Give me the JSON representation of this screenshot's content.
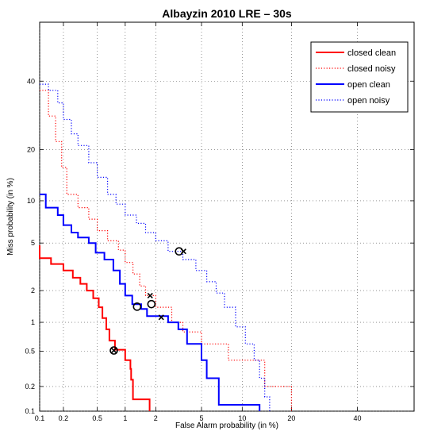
{
  "chart_data": {
    "type": "line",
    "title": "Albayzin 2010 LRE – 30s",
    "xlabel": "False Alarm probability (in %)",
    "ylabel": "Miss probability (in %)",
    "x_scale": "probit",
    "y_scale": "probit",
    "xlim": [
      0.1,
      60
    ],
    "ylim": [
      0.1,
      60
    ],
    "x_ticks": [
      "0.1",
      "0.2",
      "0.5",
      "1",
      "2",
      "5",
      "10",
      "20",
      "40"
    ],
    "y_ticks": [
      "0.1",
      "0.2",
      "0.5",
      "1",
      "2",
      "5",
      "10",
      "20",
      "40"
    ],
    "x_tick_values": [
      0.1,
      0.2,
      0.5,
      1,
      2,
      5,
      10,
      20,
      40
    ],
    "y_tick_values": [
      0.1,
      0.2,
      0.5,
      1,
      2,
      5,
      10,
      20,
      40
    ],
    "grid": true,
    "legend_position": "top-right",
    "series": [
      {
        "name": "closed clean",
        "color": "#ff0000",
        "style": "solid",
        "points": [
          [
            0.1,
            4.8
          ],
          [
            0.1,
            3.8
          ],
          [
            0.14,
            3.8
          ],
          [
            0.14,
            3.4
          ],
          [
            0.2,
            3.4
          ],
          [
            0.2,
            3.0
          ],
          [
            0.26,
            3.0
          ],
          [
            0.26,
            2.6
          ],
          [
            0.32,
            2.6
          ],
          [
            0.32,
            2.3
          ],
          [
            0.38,
            2.3
          ],
          [
            0.38,
            2.0
          ],
          [
            0.45,
            2.0
          ],
          [
            0.45,
            1.7
          ],
          [
            0.52,
            1.7
          ],
          [
            0.52,
            1.4
          ],
          [
            0.57,
            1.4
          ],
          [
            0.57,
            1.1
          ],
          [
            0.63,
            1.1
          ],
          [
            0.63,
            0.85
          ],
          [
            0.68,
            0.85
          ],
          [
            0.68,
            0.65
          ],
          [
            0.78,
            0.65
          ],
          [
            0.78,
            0.52
          ],
          [
            1.0,
            0.52
          ],
          [
            1.0,
            0.4
          ],
          [
            1.13,
            0.4
          ],
          [
            1.13,
            0.32
          ],
          [
            1.15,
            0.32
          ],
          [
            1.15,
            0.24
          ],
          [
            1.2,
            0.24
          ],
          [
            1.2,
            0.14
          ],
          [
            1.75,
            0.14
          ],
          [
            1.75,
            0.1
          ]
        ],
        "dcf_point": [
          0.76,
          0.51
        ],
        "eer_point": [
          0.76,
          0.51
        ]
      },
      {
        "name": "closed noisy",
        "color": "#ff0000",
        "style": "dotted",
        "points": [
          [
            0.1,
            37
          ],
          [
            0.13,
            37
          ],
          [
            0.13,
            29
          ],
          [
            0.16,
            29
          ],
          [
            0.16,
            22
          ],
          [
            0.19,
            22
          ],
          [
            0.19,
            16
          ],
          [
            0.22,
            16
          ],
          [
            0.22,
            11
          ],
          [
            0.3,
            11
          ],
          [
            0.3,
            9
          ],
          [
            0.4,
            9
          ],
          [
            0.4,
            7.5
          ],
          [
            0.5,
            7.5
          ],
          [
            0.5,
            6.2
          ],
          [
            0.65,
            6.2
          ],
          [
            0.65,
            5.2
          ],
          [
            0.85,
            5.2
          ],
          [
            0.85,
            4.4
          ],
          [
            1.0,
            4.4
          ],
          [
            1.0,
            3.5
          ],
          [
            1.2,
            3.5
          ],
          [
            1.2,
            2.8
          ],
          [
            1.4,
            2.8
          ],
          [
            1.4,
            2.2
          ],
          [
            1.6,
            2.2
          ],
          [
            1.6,
            1.8
          ],
          [
            2.0,
            1.8
          ],
          [
            2.0,
            1.4
          ],
          [
            2.8,
            1.4
          ],
          [
            2.8,
            1.0
          ],
          [
            3.5,
            1.0
          ],
          [
            3.5,
            0.8
          ],
          [
            5.0,
            0.8
          ],
          [
            5.0,
            0.6
          ],
          [
            8.0,
            0.6
          ],
          [
            8.0,
            0.4
          ],
          [
            14,
            0.4
          ],
          [
            14,
            0.2
          ],
          [
            20,
            0.2
          ],
          [
            20,
            0.1
          ]
        ],
        "dcf_point": [
          1.82,
          1.5
        ],
        "eer_point": [
          1.77,
          1.8
        ]
      },
      {
        "name": "open clean",
        "color": "#0000ff",
        "style": "solid",
        "points": [
          [
            0.1,
            11
          ],
          [
            0.12,
            11
          ],
          [
            0.12,
            9
          ],
          [
            0.17,
            9
          ],
          [
            0.17,
            8
          ],
          [
            0.2,
            8
          ],
          [
            0.2,
            6.8
          ],
          [
            0.25,
            6.8
          ],
          [
            0.25,
            6.0
          ],
          [
            0.3,
            6.0
          ],
          [
            0.3,
            5.5
          ],
          [
            0.4,
            5.5
          ],
          [
            0.4,
            5.0
          ],
          [
            0.48,
            5.0
          ],
          [
            0.48,
            4.2
          ],
          [
            0.6,
            4.2
          ],
          [
            0.6,
            3.7
          ],
          [
            0.75,
            3.7
          ],
          [
            0.75,
            3.0
          ],
          [
            0.88,
            3.0
          ],
          [
            0.88,
            2.3
          ],
          [
            1.0,
            2.3
          ],
          [
            1.0,
            1.8
          ],
          [
            1.18,
            1.8
          ],
          [
            1.18,
            1.5
          ],
          [
            1.45,
            1.5
          ],
          [
            1.45,
            1.35
          ],
          [
            1.65,
            1.35
          ],
          [
            1.65,
            1.15
          ],
          [
            2.6,
            1.15
          ],
          [
            2.6,
            1.0
          ],
          [
            3.2,
            1.0
          ],
          [
            3.2,
            0.85
          ],
          [
            3.8,
            0.85
          ],
          [
            3.8,
            0.6
          ],
          [
            5.0,
            0.6
          ],
          [
            5.0,
            0.4
          ],
          [
            5.5,
            0.4
          ],
          [
            5.5,
            0.25
          ],
          [
            6.8,
            0.25
          ],
          [
            6.8,
            0.12
          ],
          [
            13,
            0.12
          ],
          [
            13,
            0.1
          ]
        ],
        "dcf_point": [
          1.32,
          1.42
        ],
        "eer_point": [
          2.25,
          1.12
        ]
      },
      {
        "name": "open noisy",
        "color": "#0000ff",
        "style": "dotted",
        "points": [
          [
            0.1,
            39
          ],
          [
            0.13,
            39
          ],
          [
            0.13,
            37
          ],
          [
            0.17,
            37
          ],
          [
            0.17,
            33
          ],
          [
            0.2,
            33
          ],
          [
            0.2,
            28
          ],
          [
            0.25,
            28
          ],
          [
            0.25,
            24
          ],
          [
            0.3,
            24
          ],
          [
            0.3,
            21
          ],
          [
            0.4,
            21
          ],
          [
            0.4,
            17
          ],
          [
            0.5,
            17
          ],
          [
            0.5,
            14
          ],
          [
            0.65,
            14
          ],
          [
            0.65,
            11
          ],
          [
            0.8,
            11
          ],
          [
            0.8,
            9.5
          ],
          [
            1.0,
            9.5
          ],
          [
            1.0,
            8
          ],
          [
            1.3,
            8
          ],
          [
            1.3,
            7
          ],
          [
            1.6,
            7
          ],
          [
            1.6,
            6
          ],
          [
            2.0,
            6
          ],
          [
            2.0,
            5.2
          ],
          [
            2.6,
            5.2
          ],
          [
            2.6,
            4.3
          ],
          [
            3.5,
            4.3
          ],
          [
            3.5,
            3.7
          ],
          [
            4.5,
            3.7
          ],
          [
            4.5,
            3.0
          ],
          [
            5.5,
            3.0
          ],
          [
            5.5,
            2.4
          ],
          [
            6.5,
            2.4
          ],
          [
            6.5,
            1.9
          ],
          [
            7.5,
            1.9
          ],
          [
            7.5,
            1.4
          ],
          [
            9.0,
            1.4
          ],
          [
            9.0,
            0.9
          ],
          [
            10.5,
            0.9
          ],
          [
            10.5,
            0.6
          ],
          [
            12,
            0.6
          ],
          [
            12,
            0.4
          ],
          [
            13,
            0.4
          ],
          [
            13,
            0.25
          ],
          [
            14,
            0.25
          ],
          [
            14,
            0.15
          ],
          [
            15,
            0.15
          ],
          [
            15,
            0.1
          ]
        ],
        "dcf_point": [
          3.25,
          4.3
        ],
        "eer_point": [
          3.55,
          4.3
        ]
      }
    ]
  }
}
